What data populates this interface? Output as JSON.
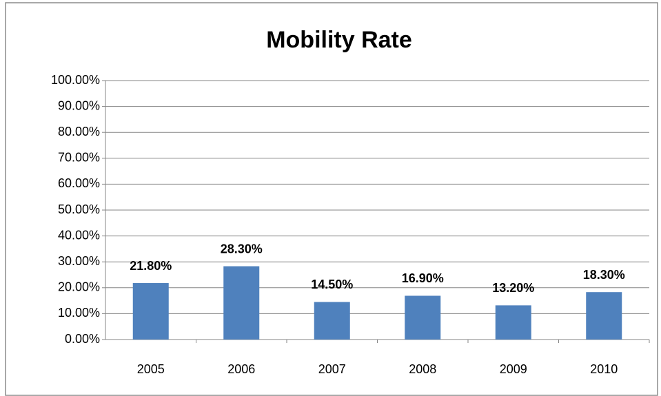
{
  "chart_data": {
    "type": "bar",
    "title": "Mobility Rate",
    "categories": [
      "2005",
      "2006",
      "2007",
      "2008",
      "2009",
      "2010"
    ],
    "values": [
      21.8,
      28.3,
      14.5,
      16.9,
      13.2,
      18.3
    ],
    "value_labels": [
      "21.80%",
      "28.30%",
      "14.50%",
      "16.90%",
      "13.20%",
      "18.30%"
    ],
    "color": "#4f81bd",
    "ylim": [
      0,
      100
    ],
    "yticks": [
      {
        "value": 0,
        "label": "0.00%"
      },
      {
        "value": 10,
        "label": "10.00%"
      },
      {
        "value": 20,
        "label": "20.00%"
      },
      {
        "value": 30,
        "label": "30.00%"
      },
      {
        "value": 40,
        "label": "40.00%"
      },
      {
        "value": 50,
        "label": "50.00%"
      },
      {
        "value": 60,
        "label": "60.00%"
      },
      {
        "value": 70,
        "label": "70.00%"
      },
      {
        "value": 80,
        "label": "80.00%"
      },
      {
        "value": 90,
        "label": "90.00%"
      },
      {
        "value": 100,
        "label": "100.00%"
      }
    ],
    "grid": true
  }
}
